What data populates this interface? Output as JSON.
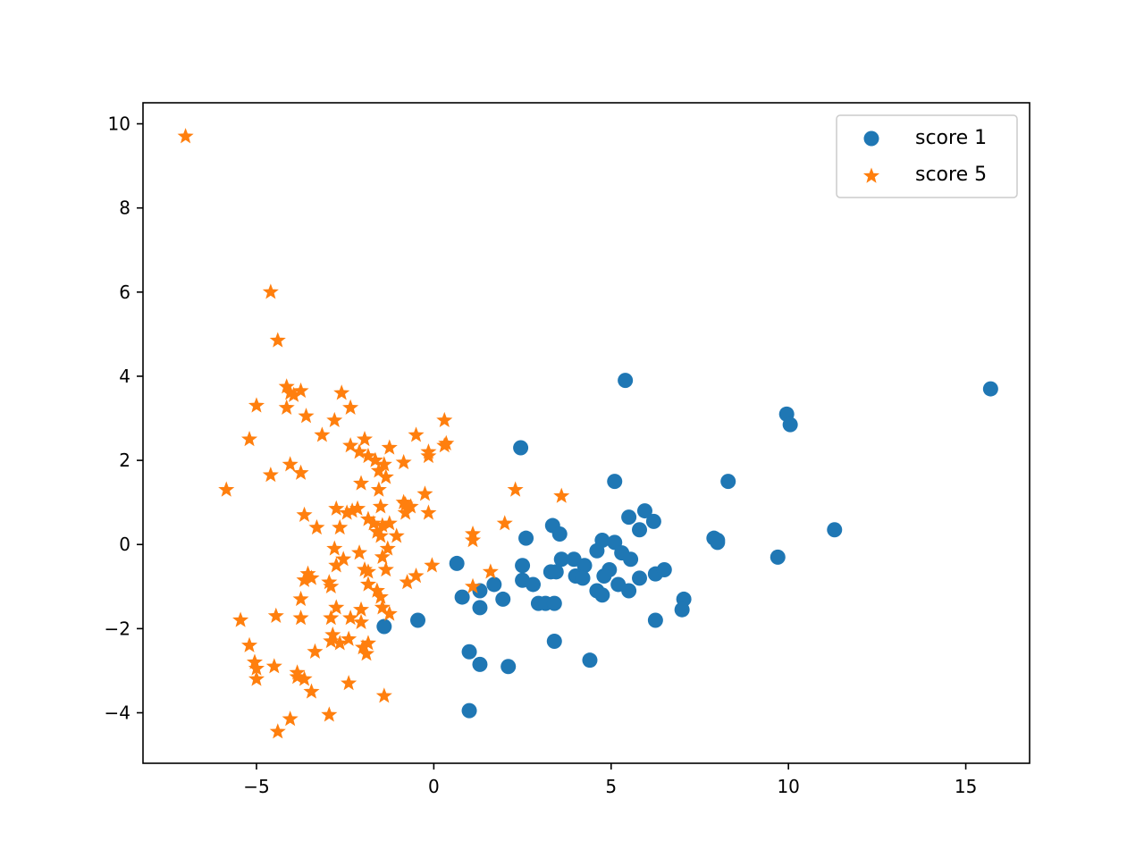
{
  "chart_data": {
    "type": "scatter",
    "title": "",
    "xlabel": "",
    "ylabel": "",
    "xlim": [
      -8.2,
      16.8
    ],
    "ylim": [
      -5.2,
      10.5
    ],
    "xticks": [
      -5,
      0,
      5,
      10,
      15
    ],
    "xtick_labels": [
      "−5",
      "0",
      "5",
      "10",
      "15"
    ],
    "yticks": [
      -4,
      -2,
      0,
      2,
      4,
      6,
      8,
      10
    ],
    "ytick_labels": [
      "−4",
      "−2",
      "0",
      "2",
      "4",
      "6",
      "8",
      "10"
    ],
    "grid": false,
    "legend_position": "upper right",
    "series": [
      {
        "name": "score 1",
        "marker": "circle",
        "color": "#1f77b4",
        "points": [
          [
            5.4,
            3.9
          ],
          [
            15.7,
            3.7
          ],
          [
            9.95,
            3.1
          ],
          [
            10.05,
            2.85
          ],
          [
            8.3,
            1.5
          ],
          [
            11.3,
            0.35
          ],
          [
            9.7,
            -0.3
          ],
          [
            7.9,
            0.15
          ],
          [
            8.0,
            0.05
          ],
          [
            8.0,
            0.1
          ],
          [
            2.45,
            2.3
          ],
          [
            5.1,
            1.5
          ],
          [
            5.95,
            0.8
          ],
          [
            6.2,
            0.55
          ],
          [
            5.5,
            0.65
          ],
          [
            5.8,
            0.35
          ],
          [
            2.6,
            0.15
          ],
          [
            3.35,
            0.45
          ],
          [
            3.55,
            0.25
          ],
          [
            4.75,
            0.1
          ],
          [
            4.6,
            -0.15
          ],
          [
            5.1,
            0.05
          ],
          [
            5.3,
            -0.2
          ],
          [
            5.55,
            -0.35
          ],
          [
            3.6,
            -0.35
          ],
          [
            3.95,
            -0.35
          ],
          [
            4.25,
            -0.5
          ],
          [
            3.3,
            -0.65
          ],
          [
            3.45,
            -0.65
          ],
          [
            4.0,
            -0.75
          ],
          [
            4.2,
            -0.8
          ],
          [
            4.95,
            -0.6
          ],
          [
            4.8,
            -0.75
          ],
          [
            6.25,
            -0.7
          ],
          [
            6.5,
            -0.6
          ],
          [
            5.8,
            -0.8
          ],
          [
            5.2,
            -0.95
          ],
          [
            5.5,
            -1.1
          ],
          [
            4.6,
            -1.1
          ],
          [
            4.75,
            -1.2
          ],
          [
            2.5,
            -0.5
          ],
          [
            2.5,
            -0.85
          ],
          [
            2.8,
            -0.95
          ],
          [
            1.7,
            -0.95
          ],
          [
            1.3,
            -1.1
          ],
          [
            0.8,
            -1.25
          ],
          [
            1.95,
            -1.3
          ],
          [
            1.3,
            -1.5
          ],
          [
            2.95,
            -1.4
          ],
          [
            3.15,
            -1.4
          ],
          [
            3.4,
            -1.4
          ],
          [
            7.05,
            -1.3
          ],
          [
            7.0,
            -1.55
          ],
          [
            6.25,
            -1.8
          ],
          [
            0.65,
            -0.45
          ],
          [
            -0.45,
            -1.8
          ],
          [
            -1.4,
            -1.95
          ],
          [
            1.0,
            -2.55
          ],
          [
            1.3,
            -2.85
          ],
          [
            2.1,
            -2.9
          ],
          [
            3.4,
            -2.3
          ],
          [
            4.4,
            -2.75
          ],
          [
            1.0,
            -3.95
          ]
        ]
      },
      {
        "name": "score 5",
        "marker": "star",
        "color": "#ff7f0e",
        "points": [
          [
            -7.0,
            9.7
          ],
          [
            -4.6,
            6.0
          ],
          [
            -4.4,
            4.85
          ],
          [
            -4.15,
            3.75
          ],
          [
            -4.05,
            3.6
          ],
          [
            -3.95,
            3.55
          ],
          [
            -3.75,
            3.65
          ],
          [
            -4.15,
            3.25
          ],
          [
            -2.6,
            3.6
          ],
          [
            -5.0,
            3.3
          ],
          [
            -3.6,
            3.05
          ],
          [
            -2.8,
            2.95
          ],
          [
            -2.35,
            3.25
          ],
          [
            0.3,
            2.95
          ],
          [
            -5.2,
            2.5
          ],
          [
            -3.15,
            2.6
          ],
          [
            -0.5,
            2.6
          ],
          [
            0.3,
            2.35
          ],
          [
            0.35,
            2.4
          ],
          [
            -0.15,
            2.2
          ],
          [
            -0.15,
            2.1
          ],
          [
            -2.35,
            2.35
          ],
          [
            -2.1,
            2.2
          ],
          [
            -1.85,
            2.1
          ],
          [
            -1.95,
            2.5
          ],
          [
            -1.25,
            2.3
          ],
          [
            -1.65,
            2.0
          ],
          [
            -1.4,
            1.9
          ],
          [
            -4.05,
            1.9
          ],
          [
            -3.75,
            1.7
          ],
          [
            -4.6,
            1.65
          ],
          [
            -0.85,
            1.95
          ],
          [
            -1.55,
            1.75
          ],
          [
            -1.35,
            1.6
          ],
          [
            -5.85,
            1.3
          ],
          [
            -2.05,
            1.45
          ],
          [
            -1.55,
            1.3
          ],
          [
            -0.25,
            1.2
          ],
          [
            2.3,
            1.3
          ],
          [
            3.6,
            1.15
          ],
          [
            -0.85,
            1.0
          ],
          [
            -0.8,
            0.95
          ],
          [
            -0.65,
            0.9
          ],
          [
            -1.5,
            0.9
          ],
          [
            -0.8,
            0.75
          ],
          [
            -0.15,
            0.75
          ],
          [
            -2.75,
            0.85
          ],
          [
            -2.3,
            0.8
          ],
          [
            -2.15,
            0.85
          ],
          [
            -2.45,
            0.75
          ],
          [
            -3.65,
            0.7
          ],
          [
            -1.85,
            0.6
          ],
          [
            -1.7,
            0.5
          ],
          [
            -1.45,
            0.45
          ],
          [
            -1.25,
            0.5
          ],
          [
            -2.65,
            0.4
          ],
          [
            -3.3,
            0.4
          ],
          [
            -1.5,
            0.2
          ],
          [
            -1.6,
            0.3
          ],
          [
            -1.05,
            0.2
          ],
          [
            1.1,
            0.25
          ],
          [
            1.1,
            0.1
          ],
          [
            2.0,
            0.5
          ],
          [
            -0.05,
            -0.5
          ],
          [
            -2.8,
            -0.1
          ],
          [
            -2.55,
            -0.35
          ],
          [
            -2.1,
            -0.2
          ],
          [
            -1.3,
            -0.1
          ],
          [
            -1.45,
            -0.3
          ],
          [
            -2.75,
            -0.5
          ],
          [
            -1.95,
            -0.6
          ],
          [
            -1.85,
            -0.65
          ],
          [
            -1.35,
            -0.6
          ],
          [
            -3.55,
            -0.7
          ],
          [
            -3.45,
            -0.8
          ],
          [
            -3.65,
            -0.85
          ],
          [
            -2.95,
            -0.9
          ],
          [
            -0.5,
            -0.75
          ],
          [
            -0.75,
            -0.9
          ],
          [
            1.6,
            -0.65
          ],
          [
            1.1,
            -1.0
          ],
          [
            -2.9,
            -1.0
          ],
          [
            -1.85,
            -0.95
          ],
          [
            -1.6,
            -1.1
          ],
          [
            -1.5,
            -1.25
          ],
          [
            -3.75,
            -1.3
          ],
          [
            -2.75,
            -1.5
          ],
          [
            -2.05,
            -1.55
          ],
          [
            -1.45,
            -1.5
          ],
          [
            -1.25,
            -1.65
          ],
          [
            -2.9,
            -1.75
          ],
          [
            -2.35,
            -1.75
          ],
          [
            -3.75,
            -1.75
          ],
          [
            -4.45,
            -1.7
          ],
          [
            -5.45,
            -1.8
          ],
          [
            -2.05,
            -1.85
          ],
          [
            -2.85,
            -2.15
          ],
          [
            -2.65,
            -2.35
          ],
          [
            -2.9,
            -2.3
          ],
          [
            -2.4,
            -2.25
          ],
          [
            -1.85,
            -2.35
          ],
          [
            -2.0,
            -2.45
          ],
          [
            -1.9,
            -2.6
          ],
          [
            -3.35,
            -2.55
          ],
          [
            -5.2,
            -2.4
          ],
          [
            -5.05,
            -2.8
          ],
          [
            -5.0,
            -2.95
          ],
          [
            -4.5,
            -2.9
          ],
          [
            -5.0,
            -3.2
          ],
          [
            -3.85,
            -3.05
          ],
          [
            -3.85,
            -3.15
          ],
          [
            -3.65,
            -3.2
          ],
          [
            -2.4,
            -3.3
          ],
          [
            -3.45,
            -3.5
          ],
          [
            -1.4,
            -3.6
          ],
          [
            -2.95,
            -4.05
          ],
          [
            -4.05,
            -4.15
          ],
          [
            -4.4,
            -4.45
          ]
        ]
      }
    ]
  }
}
